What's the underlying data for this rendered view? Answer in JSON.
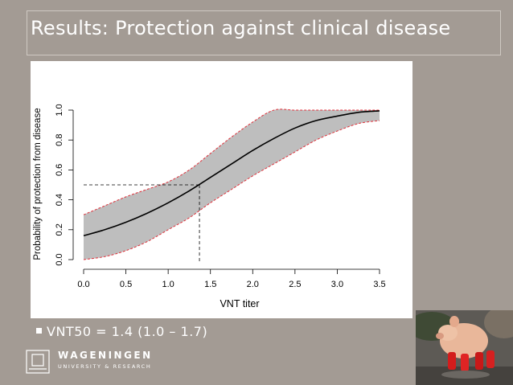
{
  "slide": {
    "title": "Results: Protection against clinical disease",
    "bullet": "VNT50 = 1.4 (1.0 – 1.7)"
  },
  "logo": {
    "title": "WAGENINGEN",
    "subtitle": "UNIVERSITY & RESEARCH"
  },
  "photo": {
    "icon": "piglet-in-red-boots-photo"
  },
  "colors": {
    "background": "#a39b94",
    "band": "#bebebe",
    "ci_line": "#e0303a",
    "curve": "#000000"
  },
  "chart_data": {
    "type": "line",
    "xlabel": "VNT titer",
    "ylabel": "Probability of protection from disease",
    "xlim": [
      0,
      3.5
    ],
    "ylim": [
      0,
      1
    ],
    "x_ticks": [
      "0.0",
      "0.5",
      "1.0",
      "1.5",
      "2.0",
      "2.5",
      "3.0",
      "3.5"
    ],
    "y_ticks": [
      "0.0",
      "0.2",
      "0.4",
      "0.6",
      "0.8",
      "1.0"
    ],
    "x": [
      0.0,
      0.25,
      0.5,
      0.75,
      1.0,
      1.25,
      1.5,
      1.75,
      2.0,
      2.25,
      2.5,
      2.75,
      3.0,
      3.25,
      3.5
    ],
    "series": [
      {
        "name": "fit",
        "values": [
          0.16,
          0.2,
          0.25,
          0.31,
          0.38,
          0.46,
          0.55,
          0.64,
          0.73,
          0.81,
          0.88,
          0.93,
          0.96,
          0.985,
          0.995
        ]
      },
      {
        "name": "lower",
        "values": [
          0.0,
          0.02,
          0.06,
          0.12,
          0.2,
          0.28,
          0.38,
          0.47,
          0.56,
          0.64,
          0.72,
          0.8,
          0.86,
          0.91,
          0.93
        ]
      },
      {
        "name": "upper",
        "values": [
          0.3,
          0.36,
          0.42,
          0.47,
          0.52,
          0.6,
          0.71,
          0.82,
          0.92,
          1.0,
          1.0,
          1.0,
          1.0,
          1.0,
          1.0
        ]
      }
    ],
    "reference": {
      "x": 1.37,
      "y": 0.5
    }
  }
}
